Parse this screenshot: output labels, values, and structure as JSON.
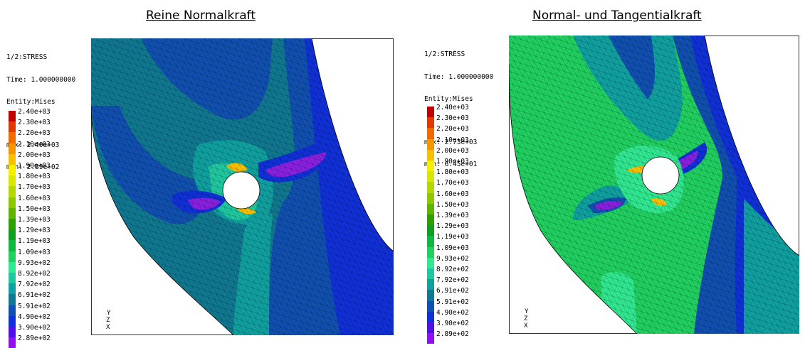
{
  "panels": [
    {
      "title": "Reine Normalkraft",
      "info": {
        "step": "1/2:STRESS",
        "time": "Time: 1.000000000",
        "entity": "Entity:Mises",
        "max": "max: 2.40e+03",
        "min": "min: 2.89e+02"
      },
      "axis_y": "Y",
      "axis_zx": "Z X"
    },
    {
      "title": "Normal- und Tangentialkraft",
      "info": {
        "step": "1/2:STRESS",
        "time": "Time: 1.000000000",
        "entity": "Entity:Mises",
        "max": "max: 2.73e+03",
        "min": "min: 6.45e+01"
      },
      "axis_y": "Y",
      "axis_zx": "Z X"
    }
  ],
  "legend": [
    {
      "value": "2.40e+03",
      "color": "#c00000"
    },
    {
      "value": "2.30e+03",
      "color": "#e03a00"
    },
    {
      "value": "2.20e+03",
      "color": "#f06a00"
    },
    {
      "value": "2.10e+03",
      "color": "#f59500"
    },
    {
      "value": "2.00e+03",
      "color": "#f8c000"
    },
    {
      "value": "1.90e+03",
      "color": "#f5f000"
    },
    {
      "value": "1.80e+03",
      "color": "#d8e800"
    },
    {
      "value": "1.70e+03",
      "color": "#b4d800"
    },
    {
      "value": "1.60e+03",
      "color": "#8cc800"
    },
    {
      "value": "1.50e+03",
      "color": "#5eb400"
    },
    {
      "value": "1.39e+03",
      "color": "#30a000"
    },
    {
      "value": "1.29e+03",
      "color": "#10a020"
    },
    {
      "value": "1.19e+03",
      "color": "#10b840"
    },
    {
      "value": "1.09e+03",
      "color": "#20d060"
    },
    {
      "value": "9.93e+02",
      "color": "#30e890"
    },
    {
      "value": "8.92e+02",
      "color": "#20c8a0"
    },
    {
      "value": "7.92e+02",
      "color": "#10a0a0"
    },
    {
      "value": "6.91e+02",
      "color": "#107890"
    },
    {
      "value": "5.91e+02",
      "color": "#1050b0"
    },
    {
      "value": "4.90e+02",
      "color": "#1030d8"
    },
    {
      "value": "3.90e+02",
      "color": "#5010e8"
    },
    {
      "value": "2.89e+02",
      "color": "#9010f0"
    }
  ],
  "field_colors": {
    "p1_base": "#107890",
    "p1_band": "#1050b0",
    "p1_dark": "#1030d8",
    "p1_light": "#10a0a0",
    "p1_green": "#20c8a0",
    "p1_purple": "#8a20e0",
    "p2_base": "#20d060",
    "p2_band": "#1050b0",
    "p2_dark": "#1030d8",
    "p2_teal": "#10a0a0",
    "p2_light": "#30e890",
    "p2_purple": "#8a20e0",
    "hot": "#f8c000",
    "hot2": "#e03a00"
  }
}
